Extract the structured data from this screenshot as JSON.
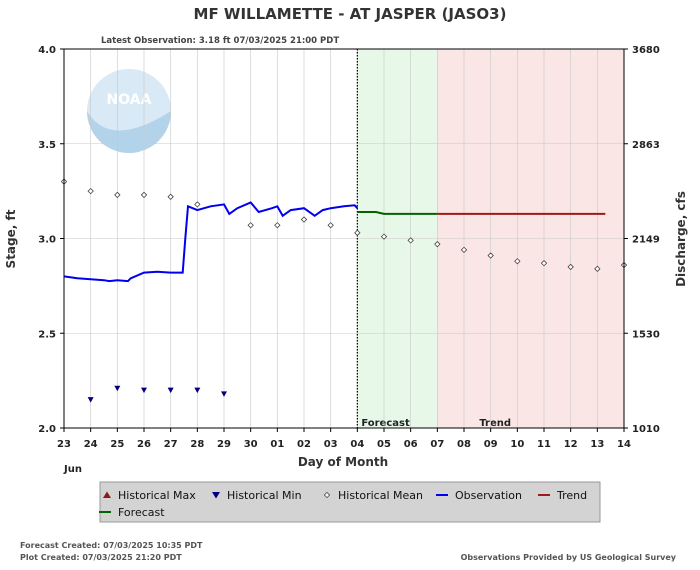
{
  "chart_data": {
    "type": "line",
    "title": "MF WILLAMETTE - AT JASPER  (JASO3)",
    "subtitle": "Latest Observation: 3.18 ft 07/03/2025 21:00 PDT",
    "xlabel": "Day of Month",
    "x_month_label": "Jun",
    "ylabel_left": "Stage, ft",
    "ylabel_right": "Discharge, cfs",
    "x_ticks": [
      "23",
      "24",
      "25",
      "26",
      "27",
      "28",
      "29",
      "30",
      "01",
      "02",
      "03",
      "04",
      "05",
      "06",
      "07",
      "08",
      "09",
      "10",
      "11",
      "12",
      "13",
      "14"
    ],
    "xlim": [
      0,
      21
    ],
    "ylim": [
      2.0,
      4.0
    ],
    "y_ticks_left": [
      "2.0",
      "2.5",
      "3.0",
      "3.5",
      "4.0"
    ],
    "y_ticks_right": [
      {
        "stage": 2.0,
        "label": "1010"
      },
      {
        "stage": 2.5,
        "label": "1530"
      },
      {
        "stage": 3.0,
        "label": "2149"
      },
      {
        "stage": 3.5,
        "label": "2863"
      },
      {
        "stage": 4.0,
        "label": "3680"
      }
    ],
    "grid": true,
    "regions": [
      {
        "name": "Forecast",
        "start": 11,
        "end": 14,
        "color": "#e8f8e8"
      },
      {
        "name": "Trend",
        "start": 14,
        "end": 21,
        "color": "#fbe6e6"
      }
    ],
    "current_time": 11,
    "series": [
      {
        "name": "Observation",
        "color": "#0000ee",
        "points": [
          [
            0.0,
            2.8
          ],
          [
            0.5,
            2.79
          ],
          [
            1.0,
            2.785
          ],
          [
            1.5,
            2.78
          ],
          [
            1.7,
            2.775
          ],
          [
            2.0,
            2.78
          ],
          [
            2.4,
            2.775
          ],
          [
            2.5,
            2.79
          ],
          [
            3.0,
            2.82
          ],
          [
            3.5,
            2.825
          ],
          [
            4.0,
            2.82
          ],
          [
            4.3,
            2.82
          ],
          [
            4.45,
            2.82
          ],
          [
            4.55,
            3.0
          ],
          [
            4.65,
            3.17
          ],
          [
            5.0,
            3.15
          ],
          [
            5.5,
            3.17
          ],
          [
            6.0,
            3.18
          ],
          [
            6.2,
            3.13
          ],
          [
            6.5,
            3.16
          ],
          [
            7.0,
            3.19
          ],
          [
            7.3,
            3.14
          ],
          [
            7.8,
            3.16
          ],
          [
            8.0,
            3.17
          ],
          [
            8.2,
            3.12
          ],
          [
            8.5,
            3.15
          ],
          [
            9.0,
            3.16
          ],
          [
            9.4,
            3.12
          ],
          [
            9.7,
            3.15
          ],
          [
            10.0,
            3.16
          ],
          [
            10.5,
            3.17
          ],
          [
            10.9,
            3.175
          ],
          [
            11.0,
            3.16
          ]
        ]
      },
      {
        "name": "Forecast",
        "color": "#006400",
        "points": [
          [
            11.0,
            3.14
          ],
          [
            11.7,
            3.14
          ],
          [
            12.0,
            3.13
          ],
          [
            14.0,
            3.13
          ]
        ]
      },
      {
        "name": "Trend",
        "color": "#a11818",
        "points": [
          [
            14.0,
            3.13
          ],
          [
            20.3,
            3.13
          ]
        ]
      },
      {
        "name": "Historical Min",
        "color": "#000080",
        "marker": "triangle-down",
        "points": [
          [
            1,
            2.15
          ],
          [
            2,
            2.21
          ],
          [
            3,
            2.2
          ],
          [
            4,
            2.2
          ],
          [
            5,
            2.2
          ],
          [
            6,
            2.18
          ]
        ]
      },
      {
        "name": "Historical Mean",
        "color": "#444444",
        "marker": "diamond",
        "points": [
          [
            0,
            3.3
          ],
          [
            1,
            3.25
          ],
          [
            2,
            3.23
          ],
          [
            3,
            3.23
          ],
          [
            4,
            3.22
          ],
          [
            5,
            3.18
          ],
          [
            7,
            3.07
          ],
          [
            8,
            3.07
          ],
          [
            9,
            3.1
          ],
          [
            10,
            3.07
          ],
          [
            11,
            3.03
          ],
          [
            12,
            3.01
          ],
          [
            13,
            2.99
          ],
          [
            14,
            2.97
          ],
          [
            15,
            2.94
          ],
          [
            16,
            2.91
          ],
          [
            17,
            2.88
          ],
          [
            18,
            2.87
          ],
          [
            19,
            2.85
          ],
          [
            20,
            2.84
          ],
          [
            21,
            2.86
          ]
        ]
      }
    ]
  },
  "legend": {
    "items": [
      {
        "label": "Historical Max",
        "symbol": "triangle-up",
        "color": "#8b1a1a"
      },
      {
        "label": "Historical Min",
        "symbol": "triangle-down",
        "color": "#000080"
      },
      {
        "label": "Historical Mean",
        "symbol": "diamond",
        "color": "#444444"
      },
      {
        "label": "Observation",
        "symbol": "line",
        "color": "#0000ee"
      },
      {
        "label": "Trend",
        "symbol": "line",
        "color": "#a11818"
      },
      {
        "label": "Forecast",
        "symbol": "line",
        "color": "#006400"
      }
    ]
  },
  "footer": {
    "forecast_created": "Forecast Created: 07/03/2025 10:35 PDT",
    "plot_created": "Plot Created: 07/03/2025 21:20 PDT",
    "credit": "Observations Provided by US Geological Survey"
  },
  "logo": {
    "text": "NOAA"
  },
  "colors": {
    "grid": "#c8c8c8",
    "legend_bg": "#d3d3d3",
    "axis": "#000000"
  }
}
